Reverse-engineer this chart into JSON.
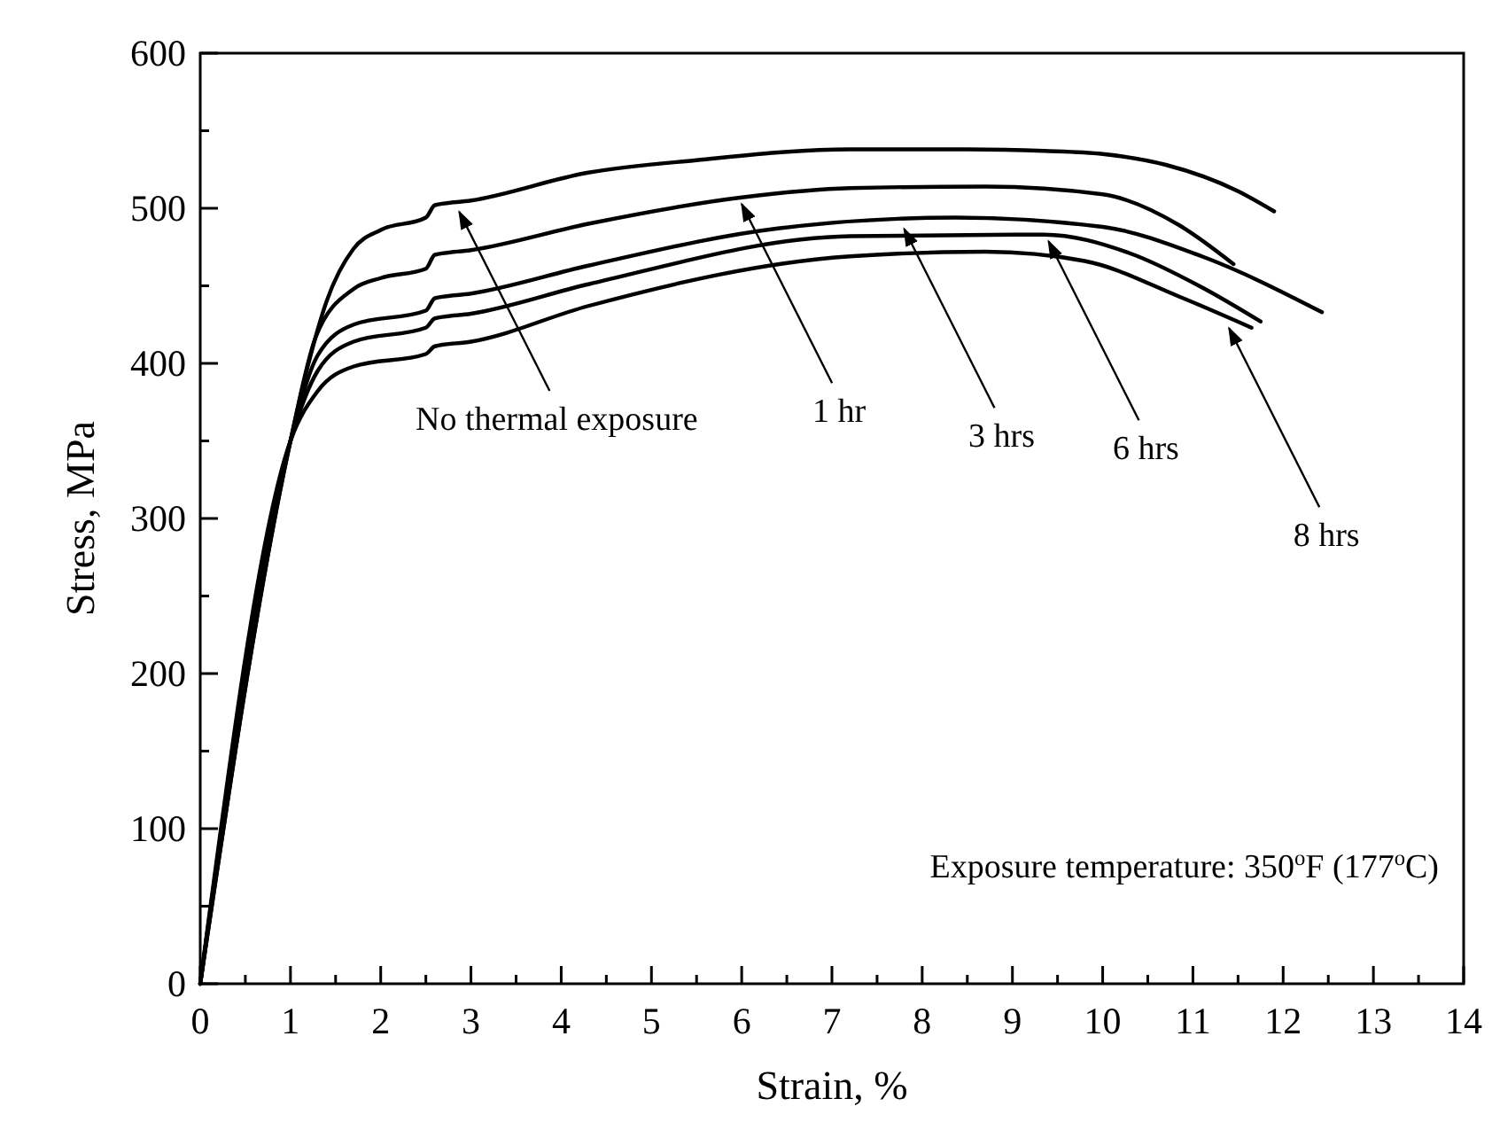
{
  "chart_data": {
    "type": "line",
    "xlabel": "Strain, %",
    "ylabel": "Stress, MPa",
    "xlim": [
      0,
      14
    ],
    "ylim": [
      0,
      600
    ],
    "xticks": [
      0,
      {
        "value": 0.5,
        "label": null
      },
      1,
      {
        "value": 1.5,
        "label": null
      },
      2,
      {
        "value": 2.5,
        "label": null
      },
      3,
      {
        "value": 3.5,
        "label": null
      },
      4,
      {
        "value": 4.5,
        "label": null
      },
      5,
      {
        "value": 5.5,
        "label": null
      },
      6,
      {
        "value": 6.5,
        "label": null
      },
      7,
      {
        "value": 7.5,
        "label": null
      },
      8,
      {
        "value": 8.5,
        "label": null
      },
      9,
      {
        "value": 9.5,
        "label": null
      },
      10,
      {
        "value": 10.5,
        "label": null
      },
      11,
      {
        "value": 11.5,
        "label": null
      },
      12,
      {
        "value": 12.5,
        "label": null
      },
      13,
      {
        "value": 13.5,
        "label": null
      },
      14
    ],
    "yticks": [
      0,
      {
        "value": 50,
        "label": null
      },
      100,
      {
        "value": 150,
        "label": null
      },
      200,
      {
        "value": 250,
        "label": null
      },
      300,
      {
        "value": 350,
        "label": null
      },
      400,
      {
        "value": 450,
        "label": null
      },
      500,
      {
        "value": 550,
        "label": null
      },
      600
    ],
    "grid": false,
    "marker": "none",
    "line_style": "solid",
    "series": [
      {
        "color": "#000000",
        "x": [
          0,
          1.0,
          1.2,
          1.4,
          1.7,
          2.0,
          2.5,
          2.6,
          3,
          4.3,
          5.5,
          7.2,
          8.5,
          9.35,
          10,
          10.7,
          11.5,
          11.9
        ],
        "values": [
          0,
          350,
          400,
          440,
          474,
          486,
          494,
          502,
          505,
          523,
          531,
          538,
          538,
          537,
          535,
          528,
          511,
          498
        ]
      },
      {
        "color": "#000000",
        "x": [
          0,
          1.0,
          1.28,
          1.7,
          2.0,
          2.5,
          2.6,
          3,
          4.3,
          6.0,
          7.2,
          8.7,
          10,
          10.85,
          11.45
        ],
        "values": [
          0,
          350,
          417,
          448,
          455,
          461,
          470,
          473,
          490,
          507,
          513,
          514,
          509,
          489,
          464
        ]
      },
      {
        "color": "#000000",
        "x": [
          0,
          1.0,
          1.3,
          1.7,
          2.5,
          2.6,
          3,
          4.3,
          6.4,
          8.37,
          10,
          11.1,
          12.43
        ],
        "values": [
          0,
          350,
          405,
          425,
          434,
          442,
          445,
          463,
          487,
          494,
          488,
          469,
          433
        ]
      },
      {
        "color": "#000000",
        "x": [
          0,
          1.0,
          1.3,
          1.7,
          2.5,
          2.6,
          3,
          4.3,
          7.2,
          9.35,
          10.3,
          11.1,
          11.75
        ],
        "values": [
          0,
          350,
          395,
          414,
          423,
          429,
          432,
          451,
          482,
          483,
          471,
          449,
          427
        ]
      },
      {
        "color": "#000000",
        "x": [
          0,
          1.0,
          1.3,
          1.7,
          2.5,
          2.6,
          3,
          4.3,
          7.2,
          8.7,
          9.8,
          10.85,
          11.65
        ],
        "values": [
          0,
          350,
          382,
          398,
          406,
          411,
          414,
          437,
          469,
          472,
          466,
          443,
          423
        ]
      }
    ],
    "annotations": [
      {
        "text": "No thermal exposure",
        "x": 2.87,
        "y": 500
      },
      {
        "text": "1 hr",
        "x": 6.0,
        "y": 505
      },
      {
        "text": "3 hrs",
        "x": 7.8,
        "y": 489
      },
      {
        "text": "6 hrs",
        "x": 9.4,
        "y": 481
      },
      {
        "text": "8 hrs",
        "x": 11.4,
        "y": 425
      },
      "Exposure temperature: 350$^{o}$F (177$^{o}$C)"
    ]
  }
}
